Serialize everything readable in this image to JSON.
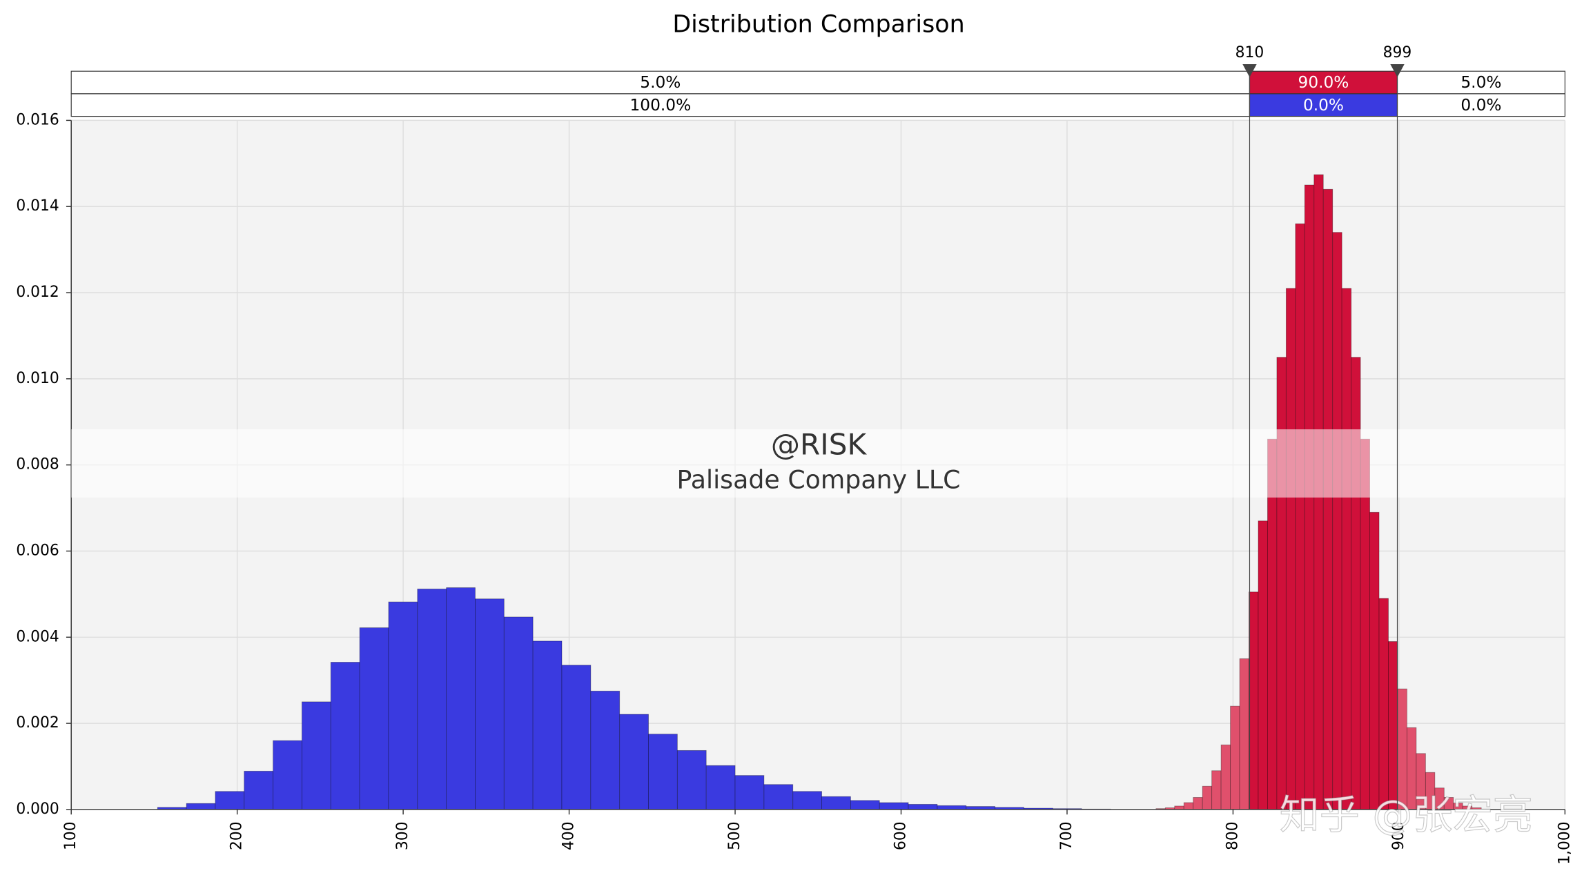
{
  "chart_data": {
    "type": "histogram",
    "title": "Distribution Comparison",
    "xlim": [
      100,
      1000
    ],
    "xticks": [
      100,
      200,
      300,
      400,
      500,
      600,
      700,
      800,
      900,
      {
        "value": 1000,
        "label": "1,000"
      }
    ],
    "ylim": [
      0,
      0.016
    ],
    "yticks": [
      {
        "value": 0,
        "label": "0.000"
      },
      {
        "value": 0.002,
        "label": "0.002"
      },
      {
        "value": 0.004,
        "label": "0.004"
      },
      {
        "value": 0.006,
        "label": "0.006"
      },
      {
        "value": 0.008,
        "label": "0.008"
      },
      {
        "value": 0.01,
        "label": "0.010"
      },
      {
        "value": 0.012,
        "label": "0.012"
      },
      {
        "value": 0.014,
        "label": "0.014"
      },
      {
        "value": 0.016,
        "label": "0.016"
      }
    ],
    "grid": true,
    "delimiters": [
      810,
      899
    ],
    "watermark": [
      "@RISK",
      "Palisade Company LLC"
    ],
    "annotation": "知乎 @张宏亮",
    "series": [
      {
        "color": "#d0103a",
        "outside_color": "#e0506c",
        "region_values": [
          5,
          90,
          5
        ],
        "region_labels": [
          "5.0%",
          "90.0%",
          "5.0%"
        ],
        "bins": [
          753.6,
          759.2,
          764.8,
          770.4,
          776,
          781.6,
          787.2,
          792.8,
          798.4,
          804,
          809.6,
          815.2,
          820.8,
          826.4,
          832,
          837.6,
          843.2,
          848.8,
          854.4,
          860,
          865.6,
          871.2,
          876.8,
          882.4,
          888,
          893.6,
          899.2,
          904.8,
          910.4,
          916,
          921.6,
          927.2,
          932.8,
          938.4,
          944,
          949.6
        ],
        "values": [
          2e-05,
          4e-05,
          8e-05,
          0.00016,
          0.00028,
          0.00054,
          0.0009,
          0.0015,
          0.0024,
          0.0035,
          0.00505,
          0.0067,
          0.0086,
          0.0105,
          0.0121,
          0.0136,
          0.0145,
          0.01474,
          0.0144,
          0.0134,
          0.0121,
          0.0105,
          0.0086,
          0.0069,
          0.0049,
          0.0039,
          0.0028,
          0.0019,
          0.0013,
          0.00086,
          0.0005,
          0.00028,
          0.00015,
          8e-05,
          4e-05
        ]
      },
      {
        "color": "#3a3ae0",
        "region_values": [
          100,
          0,
          0
        ],
        "region_labels": [
          "100.0%",
          "0.0%",
          "0.0%"
        ],
        "bins": [
          152,
          169.4,
          186.8,
          204.2,
          221.6,
          239,
          256.4,
          273.8,
          291.2,
          308.6,
          326,
          343.4,
          360.8,
          378.2,
          395.6,
          413,
          430.4,
          447.8,
          465.2,
          482.6,
          500,
          517.4,
          534.8,
          552.2,
          569.6,
          587,
          604.4,
          621.8,
          639.2,
          656.6,
          674,
          691.4,
          708.8,
          726.2
        ],
        "values": [
          5e-05,
          0.00014,
          0.00042,
          0.00089,
          0.0016,
          0.0025,
          0.00342,
          0.00422,
          0.00482,
          0.00512,
          0.00515,
          0.00489,
          0.00447,
          0.00391,
          0.00335,
          0.00275,
          0.00221,
          0.00175,
          0.00137,
          0.00102,
          0.00079,
          0.00058,
          0.00042,
          0.0003,
          0.00021,
          0.00016,
          0.00012,
          9e-05,
          7e-05,
          5e-05,
          3e-05,
          2e-05,
          1e-05
        ]
      }
    ]
  }
}
